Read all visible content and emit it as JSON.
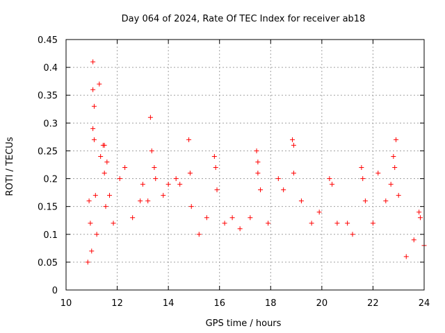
{
  "chart_data": {
    "type": "scatter",
    "title": "Day 064 of 2024, Rate Of TEC Index for receiver ab18",
    "xlabel": "GPS time / hours",
    "ylabel": "ROTI / TECUs",
    "xlim": [
      10,
      24
    ],
    "ylim": [
      0,
      0.45
    ],
    "x_ticks": [
      10,
      12,
      14,
      16,
      18,
      20,
      22,
      24
    ],
    "x_tick_labels": [
      "10",
      "12",
      "14",
      "16",
      "18",
      "20",
      "22",
      "24"
    ],
    "y_ticks": [
      0,
      0.05,
      0.1,
      0.15,
      0.2,
      0.25,
      0.3,
      0.35,
      0.4,
      0.45
    ],
    "y_tick_labels": [
      "0",
      "0.05",
      "0.1",
      "0.15",
      "0.2",
      "0.25",
      "0.3",
      "0.35",
      "0.4",
      "0.45"
    ],
    "grid": true,
    "marker": "plus",
    "series": [
      {
        "name": "ROTI",
        "color": "#ff0000",
        "points": [
          [
            10.85,
            0.05
          ],
          [
            10.9,
            0.16
          ],
          [
            10.95,
            0.12
          ],
          [
            11.0,
            0.07
          ],
          [
            11.05,
            0.41
          ],
          [
            11.05,
            0.36
          ],
          [
            11.05,
            0.29
          ],
          [
            11.1,
            0.33
          ],
          [
            11.1,
            0.27
          ],
          [
            11.15,
            0.17
          ],
          [
            11.2,
            0.1
          ],
          [
            11.3,
            0.37
          ],
          [
            11.35,
            0.24
          ],
          [
            11.45,
            0.26
          ],
          [
            11.5,
            0.26
          ],
          [
            11.5,
            0.21
          ],
          [
            11.55,
            0.15
          ],
          [
            11.6,
            0.23
          ],
          [
            11.7,
            0.17
          ],
          [
            11.85,
            0.12
          ],
          [
            12.1,
            0.2
          ],
          [
            12.3,
            0.22
          ],
          [
            12.6,
            0.13
          ],
          [
            12.9,
            0.16
          ],
          [
            13.0,
            0.19
          ],
          [
            13.2,
            0.16
          ],
          [
            13.3,
            0.31
          ],
          [
            13.35,
            0.25
          ],
          [
            13.45,
            0.22
          ],
          [
            13.5,
            0.2
          ],
          [
            13.8,
            0.17
          ],
          [
            14.0,
            0.19
          ],
          [
            14.3,
            0.2
          ],
          [
            14.45,
            0.19
          ],
          [
            14.8,
            0.27
          ],
          [
            14.85,
            0.21
          ],
          [
            14.9,
            0.15
          ],
          [
            15.2,
            0.1
          ],
          [
            15.5,
            0.13
          ],
          [
            15.8,
            0.24
          ],
          [
            15.85,
            0.22
          ],
          [
            15.9,
            0.18
          ],
          [
            16.2,
            0.12
          ],
          [
            16.5,
            0.13
          ],
          [
            16.8,
            0.11
          ],
          [
            17.2,
            0.13
          ],
          [
            17.45,
            0.25
          ],
          [
            17.5,
            0.23
          ],
          [
            17.5,
            0.21
          ],
          [
            17.6,
            0.18
          ],
          [
            17.9,
            0.12
          ],
          [
            18.3,
            0.2
          ],
          [
            18.5,
            0.18
          ],
          [
            18.85,
            0.27
          ],
          [
            18.9,
            0.26
          ],
          [
            18.9,
            0.21
          ],
          [
            19.2,
            0.16
          ],
          [
            19.6,
            0.12
          ],
          [
            19.9,
            0.14
          ],
          [
            20.3,
            0.2
          ],
          [
            20.4,
            0.19
          ],
          [
            20.6,
            0.12
          ],
          [
            21.0,
            0.12
          ],
          [
            21.2,
            0.1
          ],
          [
            21.55,
            0.22
          ],
          [
            21.6,
            0.2
          ],
          [
            21.7,
            0.16
          ],
          [
            22.0,
            0.12
          ],
          [
            22.2,
            0.21
          ],
          [
            22.5,
            0.16
          ],
          [
            22.7,
            0.19
          ],
          [
            22.8,
            0.24
          ],
          [
            22.85,
            0.22
          ],
          [
            22.9,
            0.27
          ],
          [
            23.0,
            0.17
          ],
          [
            23.3,
            0.06
          ],
          [
            23.6,
            0.09
          ],
          [
            23.8,
            0.14
          ],
          [
            23.85,
            0.13
          ],
          [
            24.0,
            0.08
          ]
        ]
      }
    ]
  }
}
